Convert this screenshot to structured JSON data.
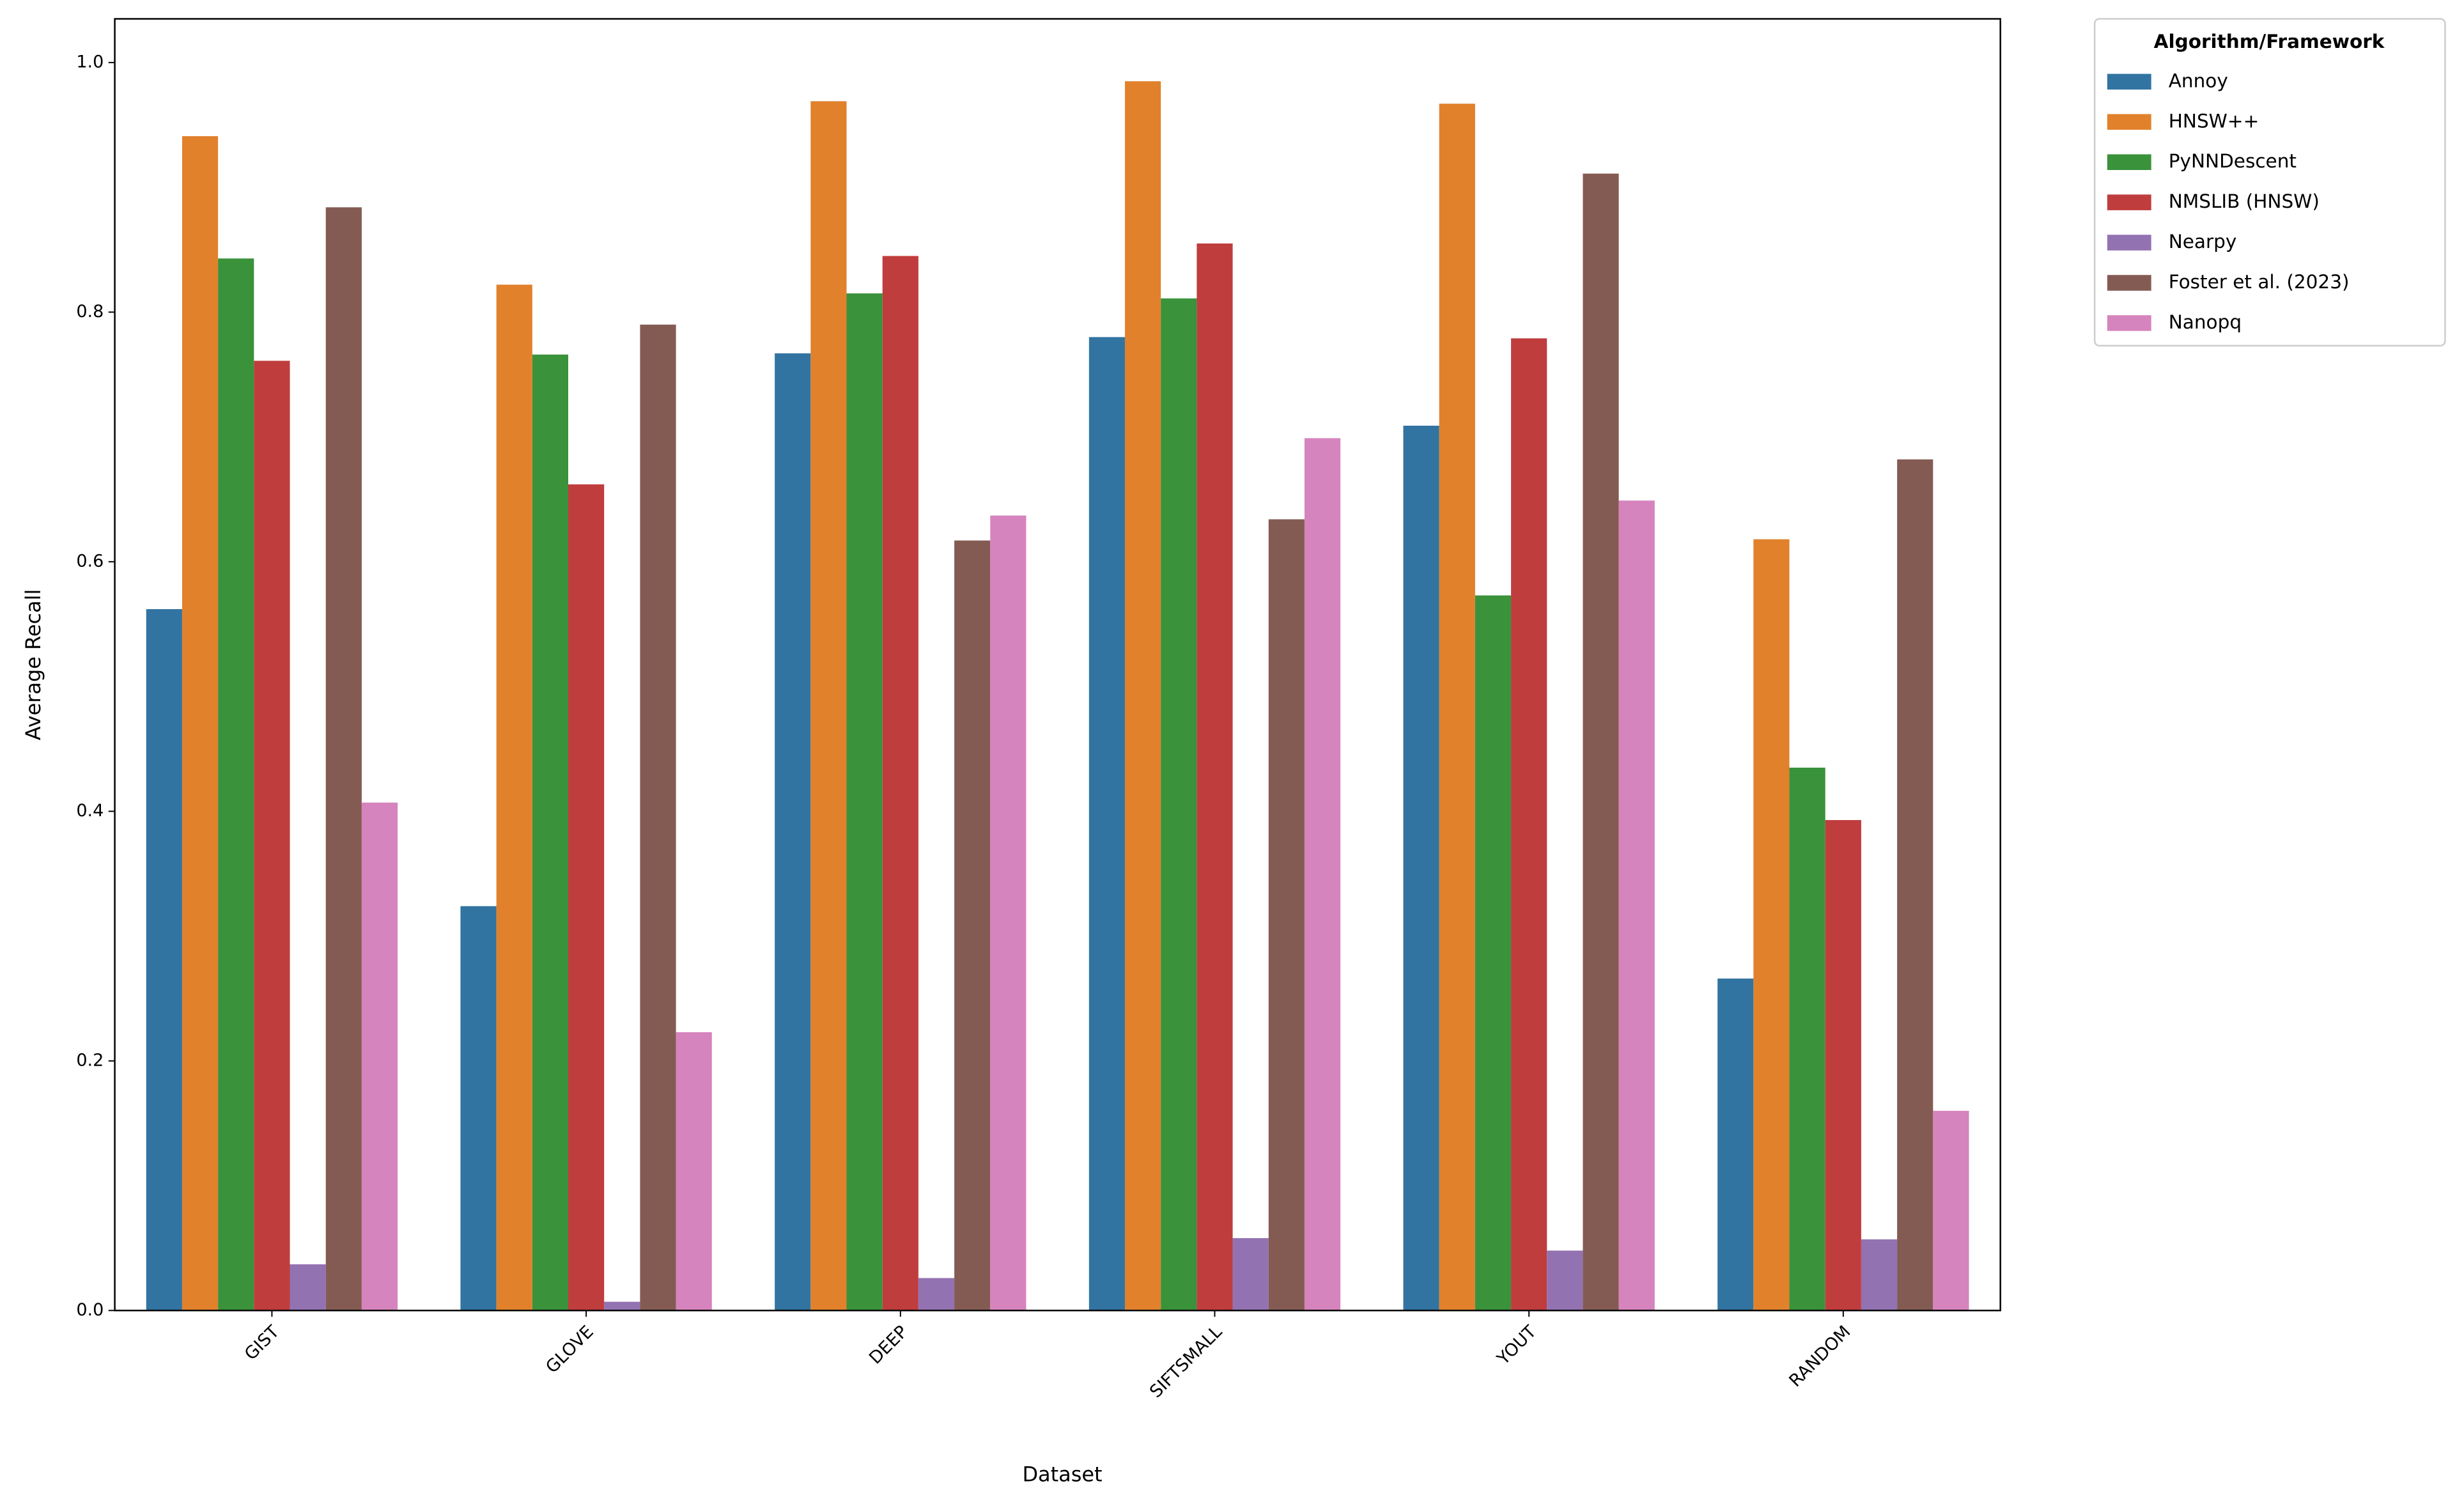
{
  "chart_data": {
    "type": "bar",
    "x_label": "Dataset",
    "y_label": "Average Recall",
    "legend_title": "Algorithm/Framework",
    "legend": "outside-upper-right",
    "categories": [
      "GIST",
      "GLOVE",
      "DEEP",
      "SIFTSMALL",
      "YOUT",
      "RANDOM"
    ],
    "series": [
      {
        "name": "Annoy",
        "color": "#3274a1",
        "values": [
          0.562,
          0.324,
          0.767,
          0.78,
          0.709,
          0.266
        ]
      },
      {
        "name": "HNSW++",
        "color": "#e1812c",
        "values": [
          0.941,
          0.822,
          0.969,
          0.985,
          0.967,
          0.618
        ]
      },
      {
        "name": "PyNNDescent",
        "color": "#3a923a",
        "values": [
          0.843,
          0.766,
          0.815,
          0.811,
          0.573,
          0.435
        ]
      },
      {
        "name": "NMSLIB (HNSW)",
        "color": "#c03d3e",
        "values": [
          0.761,
          0.662,
          0.845,
          0.855,
          0.779,
          0.393
        ]
      },
      {
        "name": "Nearpy",
        "color": "#9372b2",
        "values": [
          0.037,
          0.007,
          0.026,
          0.058,
          0.048,
          0.057
        ]
      },
      {
        "name": "Foster et al. (2023)",
        "color": "#845b53",
        "values": [
          0.884,
          0.79,
          0.617,
          0.634,
          0.911,
          0.682
        ]
      },
      {
        "name": "Nanopq",
        "color": "#d684bd",
        "values": [
          0.407,
          0.223,
          0.637,
          0.699,
          0.649,
          0.16
        ]
      }
    ],
    "ylim": [
      0,
      1.035
    ],
    "yticks": [
      {
        "value": 0,
        "label": "0.0"
      },
      0.2,
      0.4,
      0.6,
      0.8,
      {
        "value": 1,
        "label": "1.0"
      }
    ],
    "grid": false
  }
}
